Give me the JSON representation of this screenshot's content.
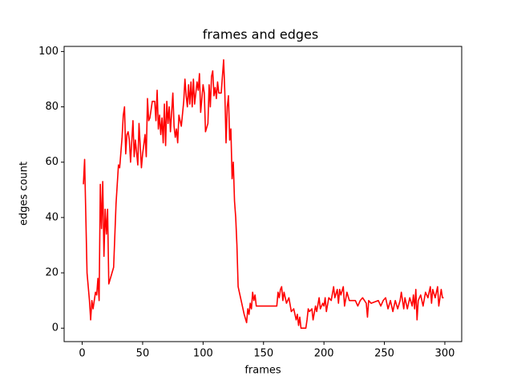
{
  "chart_data": {
    "type": "line",
    "title": "frames and edges",
    "x_label": "frames",
    "y_label": "edges count",
    "x": [
      1,
      2,
      4,
      6,
      7,
      8,
      9,
      11,
      12,
      13,
      14,
      15,
      16,
      17,
      18,
      19,
      20,
      21,
      22,
      24,
      26,
      28,
      30,
      31,
      33,
      34,
      35,
      36,
      37,
      38,
      39,
      40,
      42,
      43,
      44,
      46,
      47,
      49,
      50,
      52,
      53,
      54,
      55,
      56,
      58,
      60,
      61,
      62,
      63,
      64,
      65,
      66,
      67,
      68,
      69,
      70,
      71,
      72,
      73,
      75,
      76,
      77,
      78,
      79,
      80,
      82,
      84,
      85,
      86,
      87,
      88,
      89,
      90,
      91,
      92,
      93,
      95,
      96,
      97,
      98,
      100,
      101,
      102,
      104,
      105,
      106,
      107,
      108,
      109,
      110,
      111,
      112,
      113,
      115,
      117,
      118,
      119,
      120,
      121,
      122,
      123,
      124,
      125,
      126,
      127,
      128,
      129,
      130,
      132,
      134,
      136,
      137,
      138,
      139,
      140,
      141,
      142,
      143,
      144,
      146,
      150,
      155,
      161,
      162,
      163,
      164,
      165,
      166,
      167,
      169,
      171,
      173,
      175,
      177,
      178,
      179,
      180,
      181,
      185,
      186,
      187,
      188,
      190,
      191,
      193,
      194,
      196,
      197,
      199,
      200,
      201,
      202,
      204,
      206,
      208,
      209,
      211,
      212,
      213,
      214,
      216,
      217,
      219,
      221,
      226,
      228,
      230,
      232,
      235,
      236,
      237,
      239,
      245,
      247,
      249,
      251,
      253,
      255,
      257,
      259,
      261,
      263,
      264,
      266,
      267,
      269,
      271,
      273,
      274,
      275,
      276,
      277,
      278,
      280,
      282,
      284,
      286,
      288,
      289,
      290,
      292,
      294,
      295,
      297,
      298,
      299
    ],
    "series": [
      {
        "color": "#ff0000",
        "values": [
          52,
          61,
          20,
          10,
          3,
          10,
          7,
          13,
          12,
          18,
          10,
          52,
          36,
          53,
          26,
          43,
          34,
          43,
          16,
          19,
          22,
          45,
          59,
          58,
          69,
          77,
          80,
          63,
          70,
          71,
          68,
          60,
          75,
          62,
          68,
          59,
          74,
          58,
          63,
          70,
          62,
          83,
          75,
          76,
          82,
          82,
          75,
          86,
          72,
          77,
          70,
          76,
          67,
          81,
          66,
          82,
          74,
          80,
          71,
          85,
          73,
          69,
          72,
          67,
          77,
          73,
          82,
          90,
          84,
          80,
          88,
          81,
          89,
          80,
          90,
          81,
          89,
          86,
          92,
          78,
          88,
          85,
          71,
          74,
          88,
          80,
          91,
          93,
          84,
          87,
          83,
          89,
          85,
          85,
          97,
          85,
          67,
          80,
          84,
          68,
          72,
          54,
          60,
          46,
          40,
          30,
          15,
          13,
          9,
          5,
          2,
          7,
          5,
          9,
          7,
          13,
          10,
          12,
          8,
          8,
          8,
          8,
          8,
          13,
          11,
          14,
          15,
          10,
          13,
          9,
          11,
          6,
          7,
          3,
          5,
          1,
          4,
          0,
          0,
          3,
          7,
          6,
          7,
          3,
          8,
          6,
          11,
          7,
          9,
          8,
          11,
          6,
          11,
          10,
          15,
          11,
          14,
          9,
          14,
          12,
          15,
          8,
          13,
          10,
          10,
          8,
          10,
          11,
          9,
          4,
          10,
          9,
          10,
          8,
          10,
          11,
          7,
          10,
          6,
          10,
          7,
          10,
          13,
          7,
          11,
          7,
          11,
          8,
          12,
          7,
          14,
          3,
          10,
          12,
          8,
          13,
          11,
          15,
          9,
          14,
          11,
          15,
          8,
          14,
          11,
          11
        ]
      }
    ],
    "xlim": [
      -14.95,
      313.95
    ],
    "xticks": [
      0,
      50,
      100,
      150,
      200,
      250,
      300
    ],
    "ylim": [
      -4.85,
      101.85
    ],
    "yticks": [
      0,
      20,
      40,
      60,
      80,
      100
    ]
  }
}
